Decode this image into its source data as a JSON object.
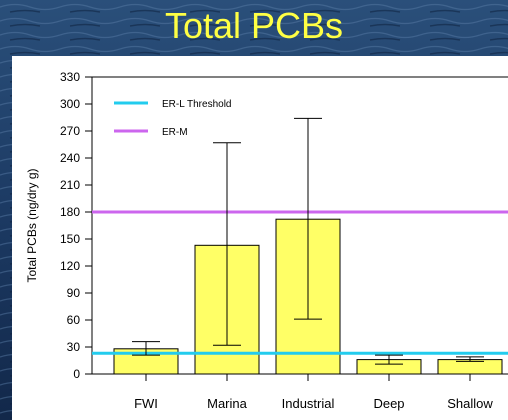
{
  "title": "Total PCBs",
  "colors": {
    "title": "#ffff44",
    "bar_fill": "#ffff66",
    "erl": "#22ccee",
    "erm": "#cc66ee"
  },
  "chart_data": {
    "type": "bar",
    "title": "Total PCBs",
    "ylabel": "Total PCBs (ng/dry g)",
    "xlabel": "",
    "categories": [
      "FWI",
      "Marina",
      "Industrial",
      "Deep",
      "Shallow"
    ],
    "values": [
      28,
      143,
      172,
      16,
      16
    ],
    "error_low": [
      21,
      32,
      61,
      11,
      14
    ],
    "error_high": [
      36,
      257,
      284,
      21,
      19
    ],
    "ylim": [
      0,
      330
    ],
    "yticks": [
      0,
      30,
      60,
      90,
      120,
      150,
      180,
      210,
      240,
      270,
      300,
      330
    ],
    "reference_lines": [
      {
        "name": "ER-L Threshold",
        "value": 23,
        "color": "#22ccee"
      },
      {
        "name": "ER-M",
        "value": 180,
        "color": "#cc66ee"
      }
    ],
    "legend_position": "top-left",
    "grid": false
  }
}
